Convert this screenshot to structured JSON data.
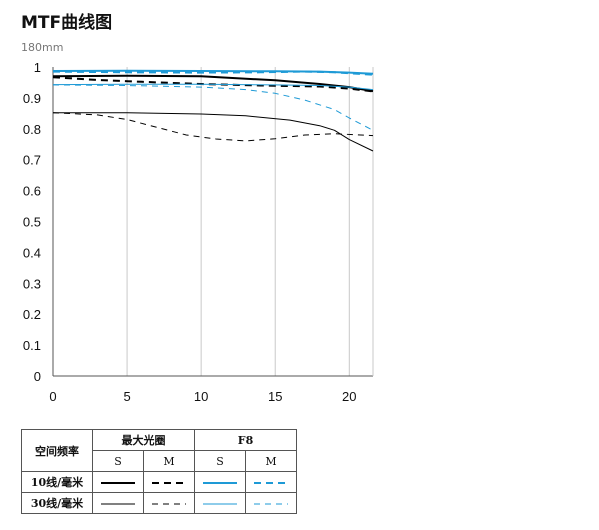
{
  "title": "MTF曲线图",
  "chart_data": {
    "type": "line",
    "subtitle": "180mm",
    "x_ticks": [
      "0",
      "5",
      "10",
      "15",
      "20"
    ],
    "y_ticks": [
      "0",
      "0.1",
      "0.2",
      "0.3",
      "0.4",
      "0.5",
      "0.6",
      "0.7",
      "0.8",
      "0.9",
      "1"
    ],
    "xlim": [
      0,
      21.6
    ],
    "ylim": [
      0,
      1
    ],
    "grid": "vertical",
    "series": [
      {
        "group": "最大光圈",
        "freq": "10线/毫米",
        "type": "S",
        "color": "#000000",
        "dash": false,
        "width": 2,
        "points": [
          [
            0,
            0.97
          ],
          [
            5,
            0.972
          ],
          [
            10,
            0.97
          ],
          [
            15,
            0.957
          ],
          [
            18,
            0.945
          ],
          [
            20,
            0.935
          ],
          [
            21.6,
            0.922
          ]
        ]
      },
      {
        "group": "最大光圈",
        "freq": "10线/毫米",
        "type": "M",
        "color": "#000000",
        "dash": true,
        "width": 2,
        "points": [
          [
            0,
            0.967
          ],
          [
            3,
            0.958
          ],
          [
            6,
            0.952
          ],
          [
            10,
            0.945
          ],
          [
            14,
            0.94
          ],
          [
            18,
            0.937
          ],
          [
            20,
            0.93
          ],
          [
            21.6,
            0.921
          ]
        ]
      },
      {
        "group": "最大光圈",
        "freq": "30线/毫米",
        "type": "S",
        "color": "#000000",
        "dash": false,
        "width": 1,
        "points": [
          [
            0,
            0.852
          ],
          [
            5,
            0.852
          ],
          [
            10,
            0.848
          ],
          [
            13,
            0.842
          ],
          [
            16,
            0.828
          ],
          [
            18,
            0.81
          ],
          [
            19,
            0.795
          ],
          [
            20,
            0.765
          ],
          [
            21.6,
            0.728
          ]
        ]
      },
      {
        "group": "最大光圈",
        "freq": "30线/毫米",
        "type": "M",
        "color": "#000000",
        "dash": true,
        "width": 1,
        "points": [
          [
            0,
            0.852
          ],
          [
            3,
            0.845
          ],
          [
            5,
            0.83
          ],
          [
            7,
            0.805
          ],
          [
            9,
            0.78
          ],
          [
            11,
            0.767
          ],
          [
            13,
            0.761
          ],
          [
            15,
            0.768
          ],
          [
            17,
            0.78
          ],
          [
            19,
            0.784
          ],
          [
            21.6,
            0.778
          ]
        ]
      },
      {
        "group": "F8",
        "freq": "10线/毫米",
        "type": "S",
        "color": "#1e9ad6",
        "dash": false,
        "width": 2,
        "points": [
          [
            0,
            0.987
          ],
          [
            5,
            0.988
          ],
          [
            10,
            0.987
          ],
          [
            15,
            0.986
          ],
          [
            18,
            0.985
          ],
          [
            20,
            0.982
          ],
          [
            21.6,
            0.978
          ]
        ]
      },
      {
        "group": "F8",
        "freq": "10线/毫米",
        "type": "M",
        "color": "#1e9ad6",
        "dash": true,
        "width": 2,
        "points": [
          [
            0,
            0.985
          ],
          [
            5,
            0.983
          ],
          [
            10,
            0.982
          ],
          [
            14,
            0.983
          ],
          [
            17,
            0.985
          ],
          [
            19,
            0.983
          ],
          [
            21.6,
            0.975
          ]
        ]
      },
      {
        "group": "F8",
        "freq": "30线/毫米",
        "type": "S",
        "color": "#1e9ad6",
        "dash": false,
        "width": 1,
        "points": [
          [
            0,
            0.943
          ],
          [
            5,
            0.944
          ],
          [
            10,
            0.944
          ],
          [
            15,
            0.942
          ],
          [
            18,
            0.94
          ],
          [
            20,
            0.935
          ],
          [
            21.6,
            0.927
          ]
        ]
      },
      {
        "group": "F8",
        "freq": "30线/毫米",
        "type": "M",
        "color": "#1e9ad6",
        "dash": true,
        "width": 1,
        "points": [
          [
            0,
            0.942
          ],
          [
            5,
            0.94
          ],
          [
            10,
            0.935
          ],
          [
            13,
            0.927
          ],
          [
            15,
            0.915
          ],
          [
            17,
            0.893
          ],
          [
            19,
            0.862
          ],
          [
            20,
            0.835
          ],
          [
            21.6,
            0.795
          ]
        ]
      }
    ]
  },
  "legend": {
    "col_header": "空间频率",
    "group1": "最大光圈",
    "group2": "F8",
    "s_label": "S",
    "m_label": "M",
    "row1": "10线/毫米",
    "row2": "30线/毫米"
  }
}
